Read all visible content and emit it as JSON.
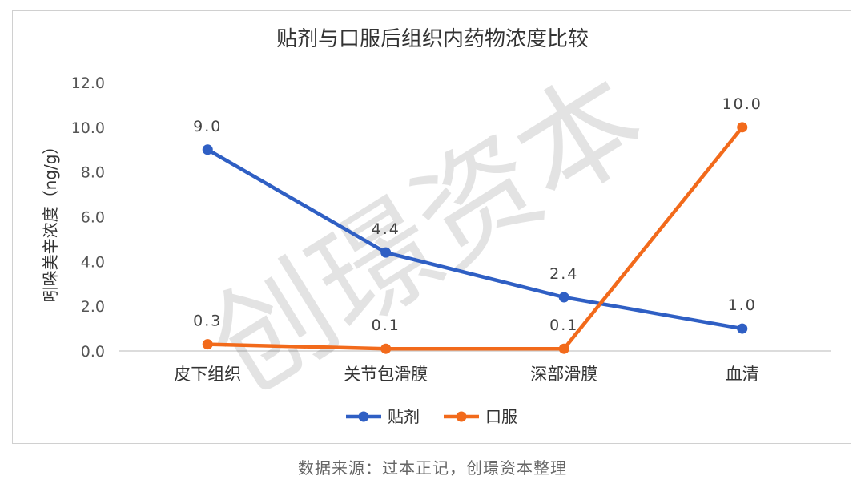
{
  "chart_data": {
    "type": "line",
    "title": "贴剂与口服后组织内药物浓度比较",
    "ylabel": "吲哚美辛浓度（ng/g）",
    "xlabel": "",
    "categories": [
      "皮下组织",
      "关节包滑膜",
      "深部滑膜",
      "血清"
    ],
    "ylim": [
      0,
      12
    ],
    "yticks": [
      "0.0",
      "2.0",
      "4.0",
      "6.0",
      "8.0",
      "10.0",
      "12.0"
    ],
    "legend_position": "bottom",
    "gridlines": false,
    "series": [
      {
        "name": "贴剂",
        "color": "#2f5fc4",
        "values": [
          9.0,
          4.4,
          2.4,
          1.0
        ],
        "labels": [
          "9.0",
          "4.4",
          "2.4",
          "1.0"
        ]
      },
      {
        "name": "口服",
        "color": "#f26a1b",
        "values": [
          0.3,
          0.1,
          0.1,
          10.0
        ],
        "labels": [
          "0.3",
          "0.1",
          "0.1",
          "10.0"
        ]
      }
    ],
    "watermark": "创璟资本"
  },
  "source_text": "数据来源：过本正记，创璟资本整理"
}
